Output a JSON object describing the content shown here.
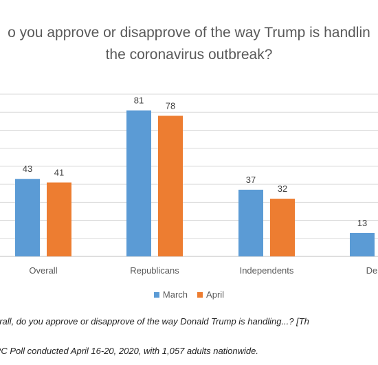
{
  "title_line1": "o you approve or disapprove of the way Trump is handlin",
  "title_line2": "the coronavirus outbreak?",
  "caption_question": "erall, do you approve or disapprove of the way Donald Trump is handling...? [Th",
  "caption_source": "RC Poll conducted April 16-20, 2020, with 1,057 adults nationwide.",
  "colors": {
    "March": "#5b9bd5",
    "April": "#ed7d31",
    "grid": "#d9d9d9",
    "axis": "#bfbfbf"
  },
  "chart_data": {
    "type": "bar",
    "title": "o you approve or disapprove of the way Trump is handlin the coronavirus outbreak?",
    "categories": [
      "Overall",
      "Republicans",
      "Independents",
      "Demo"
    ],
    "series": [
      {
        "name": "March",
        "values": [
          43,
          81,
          37,
          13
        ]
      },
      {
        "name": "April",
        "values": [
          41,
          78,
          32,
          null
        ]
      }
    ],
    "ylim": [
      0,
      90
    ],
    "grid": true,
    "legend": "bottom"
  }
}
